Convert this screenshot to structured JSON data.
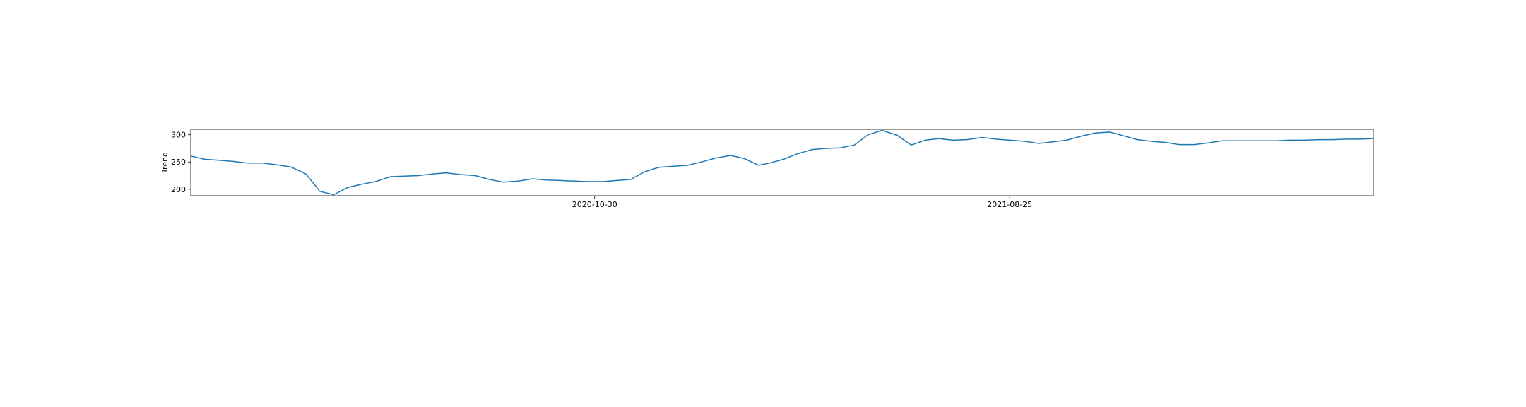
{
  "chart_data": {
    "type": "line",
    "ylabel": "Trend",
    "xlabel": "",
    "title": "",
    "grid": false,
    "legend": "none",
    "line_color": "#1f77b4",
    "xlim": [
      "2020-01-13",
      "2022-05-14"
    ],
    "ylim": [
      188,
      310
    ],
    "x_ticks": [
      "2020-10-30",
      "2021-08-25"
    ],
    "y_ticks": [
      200,
      250,
      300
    ],
    "series": [
      {
        "x": [
          "2020-01-13",
          "2020-01-23",
          "2020-02-03",
          "2020-02-13",
          "2020-02-23",
          "2020-03-05",
          "2020-03-15",
          "2020-03-25",
          "2020-04-05",
          "2020-04-15",
          "2020-04-25",
          "2020-05-05",
          "2020-05-15",
          "2020-05-25",
          "2020-06-05",
          "2020-06-15",
          "2020-06-25",
          "2020-07-05",
          "2020-07-15",
          "2020-07-25",
          "2020-08-05",
          "2020-08-15",
          "2020-08-25",
          "2020-09-05",
          "2020-09-15",
          "2020-09-25",
          "2020-10-05",
          "2020-10-15",
          "2020-10-25",
          "2020-11-05",
          "2020-11-15",
          "2020-11-25",
          "2020-12-05",
          "2020-12-15",
          "2020-12-25",
          "2021-01-05",
          "2021-01-15",
          "2021-01-25",
          "2021-02-05",
          "2021-02-15",
          "2021-02-25",
          "2021-03-05",
          "2021-03-15",
          "2021-03-25",
          "2021-04-05",
          "2021-04-15",
          "2021-04-25",
          "2021-05-05",
          "2021-05-15",
          "2021-05-25",
          "2021-06-05",
          "2021-06-15",
          "2021-06-25",
          "2021-07-05",
          "2021-07-15",
          "2021-07-25",
          "2021-08-05",
          "2021-08-15",
          "2021-08-25",
          "2021-09-05",
          "2021-09-15",
          "2021-09-25",
          "2021-10-05",
          "2021-10-15",
          "2021-10-25",
          "2021-11-05",
          "2021-11-15",
          "2021-11-25",
          "2021-12-05",
          "2021-12-15",
          "2021-12-25",
          "2022-01-05",
          "2022-01-15",
          "2022-01-25",
          "2022-02-05",
          "2022-02-15",
          "2022-02-25",
          "2022-03-05",
          "2022-03-15",
          "2022-03-25",
          "2022-04-05",
          "2022-04-15",
          "2022-04-25",
          "2022-05-05",
          "2022-05-14"
        ],
        "values": [
          261,
          255,
          253,
          251,
          248,
          248,
          245,
          241,
          228,
          196,
          190,
          203,
          209,
          214,
          223,
          224,
          225,
          228,
          230,
          227,
          225,
          218,
          213,
          215,
          219,
          217,
          216,
          215,
          214,
          214,
          216,
          218,
          232,
          240,
          242,
          244,
          250,
          257,
          262,
          256,
          244,
          248,
          255,
          265,
          273,
          275,
          276,
          281,
          300,
          308,
          299,
          281,
          290,
          293,
          290,
          291,
          295,
          292,
          290,
          288,
          284,
          287,
          290,
          297,
          303,
          305,
          298,
          291,
          288,
          286,
          282,
          282,
          285,
          289,
          289,
          289,
          289,
          289,
          290,
          290,
          291,
          291,
          292,
          292,
          293
        ]
      }
    ]
  }
}
